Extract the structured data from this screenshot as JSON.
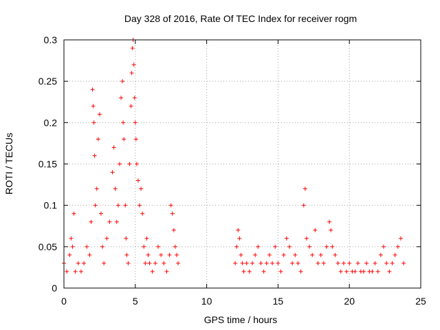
{
  "chart_data": {
    "type": "scatter",
    "title": "Day 328 of 2016, Rate Of TEC Index for receiver rogm",
    "xlabel": "GPS time / hours",
    "ylabel": "ROTI / TECUs",
    "xlim": [
      0,
      25
    ],
    "ylim": [
      0,
      0.3
    ],
    "x_ticks": [
      "0",
      "5",
      "10",
      "15",
      "20",
      "25"
    ],
    "y_ticks": [
      "0",
      "0.05",
      "0.1",
      "0.15",
      "0.2",
      "0.25",
      "0.3"
    ],
    "grid": true,
    "grid_style": "dotted",
    "marker": "+",
    "color": "#ff0000",
    "legend": "none",
    "series": [
      {
        "x": [
          0.0,
          0.2,
          0.4,
          0.5,
          0.6,
          0.7,
          0.8,
          1.0,
          1.2,
          1.4,
          1.6,
          1.8,
          1.9,
          2.0,
          2.05,
          2.1,
          2.15,
          2.2,
          2.3,
          2.4,
          2.5,
          2.6,
          2.7,
          2.8,
          3.0,
          3.2,
          3.4,
          3.5,
          3.6,
          3.7,
          3.8,
          3.9,
          4.0,
          4.1,
          4.15,
          4.2,
          4.3,
          4.35,
          4.4,
          4.5,
          4.6,
          4.7,
          4.75,
          4.8,
          4.85,
          4.9,
          4.95,
          5.0,
          5.05,
          5.1,
          5.2,
          5.3,
          5.4,
          5.5,
          5.6,
          5.7,
          5.8,
          5.9,
          6.0,
          6.2,
          6.4,
          6.6,
          6.8,
          7.0,
          7.2,
          7.4,
          7.5,
          7.6,
          7.7,
          7.8,
          7.9,
          8.0,
          12.0,
          12.1,
          12.2,
          12.3,
          12.4,
          12.5,
          12.6,
          12.8,
          13.0,
          13.2,
          13.4,
          13.6,
          13.8,
          14.0,
          14.2,
          14.4,
          14.6,
          14.8,
          15.0,
          15.2,
          15.4,
          15.6,
          15.8,
          16.0,
          16.2,
          16.4,
          16.6,
          16.8,
          16.9,
          17.0,
          17.2,
          17.4,
          17.6,
          17.8,
          18.0,
          18.2,
          18.4,
          18.6,
          18.7,
          18.8,
          19.0,
          19.2,
          19.4,
          19.6,
          19.8,
          20.0,
          20.2,
          20.4,
          20.6,
          20.8,
          21.0,
          21.2,
          21.4,
          21.6,
          21.8,
          22.0,
          22.2,
          22.4,
          22.6,
          22.8,
          23.0,
          23.2,
          23.4,
          23.6,
          23.8
        ],
        "y": [
          0.03,
          0.02,
          0.04,
          0.06,
          0.05,
          0.09,
          0.02,
          0.03,
          0.02,
          0.03,
          0.05,
          0.04,
          0.08,
          0.24,
          0.22,
          0.2,
          0.16,
          0.1,
          0.12,
          0.18,
          0.21,
          0.09,
          0.05,
          0.03,
          0.06,
          0.08,
          0.14,
          0.17,
          0.12,
          0.08,
          0.1,
          0.15,
          0.23,
          0.25,
          0.2,
          0.18,
          0.1,
          0.06,
          0.04,
          0.03,
          0.15,
          0.22,
          0.26,
          0.29,
          0.3,
          0.27,
          0.23,
          0.2,
          0.18,
          0.15,
          0.13,
          0.1,
          0.12,
          0.09,
          0.05,
          0.03,
          0.06,
          0.04,
          0.03,
          0.02,
          0.03,
          0.05,
          0.04,
          0.03,
          0.02,
          0.04,
          0.1,
          0.09,
          0.07,
          0.05,
          0.04,
          0.03,
          0.03,
          0.05,
          0.07,
          0.06,
          0.04,
          0.03,
          0.02,
          0.03,
          0.02,
          0.03,
          0.04,
          0.05,
          0.03,
          0.02,
          0.03,
          0.04,
          0.03,
          0.05,
          0.03,
          0.02,
          0.04,
          0.06,
          0.05,
          0.03,
          0.04,
          0.03,
          0.02,
          0.1,
          0.12,
          0.06,
          0.05,
          0.04,
          0.07,
          0.03,
          0.04,
          0.03,
          0.05,
          0.08,
          0.07,
          0.05,
          0.04,
          0.03,
          0.02,
          0.03,
          0.02,
          0.03,
          0.02,
          0.02,
          0.03,
          0.02,
          0.02,
          0.03,
          0.02,
          0.02,
          0.03,
          0.02,
          0.04,
          0.05,
          0.03,
          0.02,
          0.03,
          0.04,
          0.05,
          0.06,
          0.03
        ]
      }
    ]
  }
}
